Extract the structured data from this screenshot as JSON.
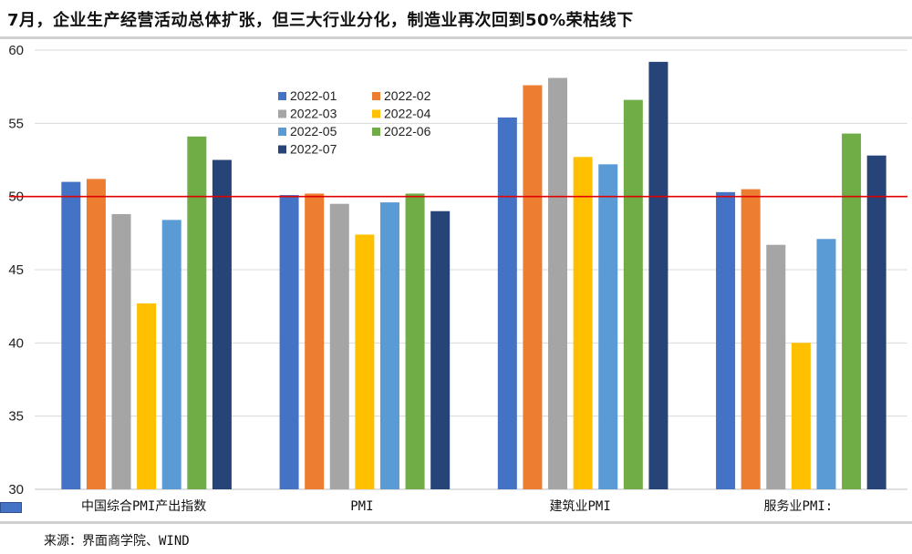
{
  "title": "7月，企业生产经营活动总体扩张，但三大行业分化，制造业再次回到50%荣枯线下",
  "source": "来源：界面商学院、WIND",
  "chart_data": {
    "type": "bar",
    "categories": [
      "中国综合PMI产出指数",
      "PMI",
      "建筑业PMI",
      "服务业PMI:"
    ],
    "series": [
      {
        "name": "2022-01",
        "color": "#4472C4",
        "values": [
          51.0,
          50.1,
          55.4,
          50.3
        ]
      },
      {
        "name": "2022-02",
        "color": "#ED7D31",
        "values": [
          51.2,
          50.2,
          57.6,
          50.5
        ]
      },
      {
        "name": "2022-03",
        "color": "#A5A5A5",
        "values": [
          48.8,
          49.5,
          58.1,
          46.7
        ]
      },
      {
        "name": "2022-04",
        "color": "#FFC000",
        "values": [
          42.7,
          47.4,
          52.7,
          40.0
        ]
      },
      {
        "name": "2022-05",
        "color": "#5B9BD5",
        "values": [
          48.4,
          49.6,
          52.2,
          47.1
        ]
      },
      {
        "name": "2022-06",
        "color": "#70AD47",
        "values": [
          54.1,
          50.2,
          56.6,
          54.3
        ]
      },
      {
        "name": "2022-07",
        "color": "#264478",
        "values": [
          52.5,
          49.0,
          59.2,
          52.8
        ]
      }
    ],
    "ylim": [
      30,
      60
    ],
    "yticks": [
      30,
      35,
      40,
      45,
      50,
      55,
      60
    ],
    "reference_line": {
      "value": 50,
      "color": "#E00000"
    },
    "grid": true,
    "legend_placement": "top-left-center"
  }
}
